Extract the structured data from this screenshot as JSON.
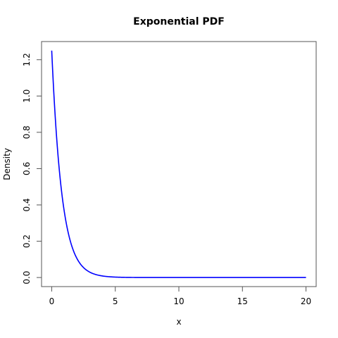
{
  "chart_data": {
    "type": "line",
    "title": "Exponential PDF",
    "xlabel": "x",
    "ylabel": "Density",
    "xlim": [
      -0.8,
      20.8
    ],
    "ylim": [
      -0.05,
      1.3
    ],
    "x_ticks": [
      0,
      5,
      10,
      15,
      20
    ],
    "x_tick_labels": [
      "0",
      "5",
      "10",
      "15",
      "20"
    ],
    "y_ticks": [
      0.0,
      0.2,
      0.4,
      0.6,
      0.8,
      1.0,
      1.2
    ],
    "y_tick_labels": [
      "0.0",
      "0.2",
      "0.4",
      "0.6",
      "0.8",
      "1.0",
      "1.2"
    ],
    "grid": false,
    "series": [
      {
        "color": "#0000ff",
        "function": "exponential_pdf",
        "rate": 1.25,
        "x_range": [
          0,
          20
        ]
      }
    ]
  }
}
